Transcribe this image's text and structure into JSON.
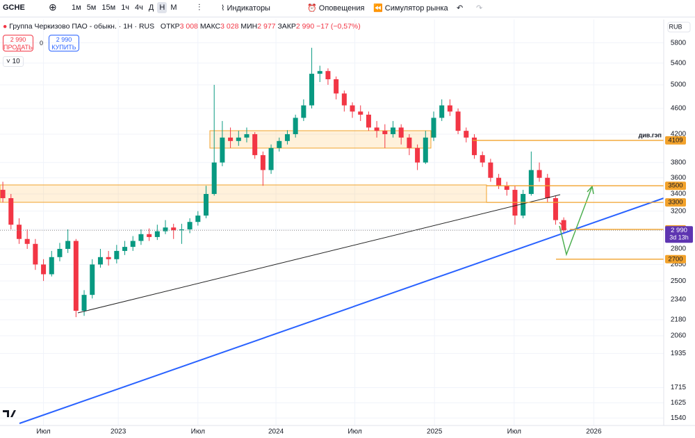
{
  "toolbar": {
    "symbol": "GCHE",
    "intervals": [
      "1м",
      "5м",
      "15м",
      "1ч",
      "4ч",
      "Д",
      "Н",
      "М"
    ],
    "indicators": "Индикаторы",
    "alerts": "Оповещения",
    "replay": "Симулятор рынка"
  },
  "legend": {
    "name": "Группа Черкизово ПАО - обыкн. · 1Н · RUS",
    "open_label": "ОТКР",
    "open": "3 008",
    "high_label": "МАКС",
    "high": "3 028",
    "low_label": "МИН",
    "low": "2 977",
    "close_label": "ЗАКР",
    "close": "2 990",
    "change": "−17 (−0,57%)"
  },
  "trade": {
    "sell_price": "2 990",
    "sell": "ПРОДАТЬ",
    "spread": "0",
    "buy_price": "2 990",
    "buy": "КУПИТЬ"
  },
  "volume_indicator": "10",
  "currency": "RUB",
  "chart_data": {
    "type": "candlestick",
    "log_scale": true,
    "grid": true,
    "categories": [
      null,
      null,
      null,
      null,
      null,
      null,
      null,
      null,
      null,
      null,
      null,
      null,
      null,
      null,
      null,
      null,
      null,
      null,
      null,
      null,
      null,
      null,
      null,
      null,
      null,
      null,
      null,
      null,
      null,
      null,
      null,
      null,
      null,
      null,
      null,
      null,
      null,
      null,
      null,
      null,
      null,
      null,
      null,
      null,
      null,
      null,
      null,
      null,
      null,
      null,
      null,
      null,
      null,
      null,
      null,
      null,
      null,
      null,
      null,
      null,
      null,
      null,
      null,
      null,
      null,
      null,
      null,
      null,
      null,
      null
    ],
    "open": [
      3450,
      3350,
      3050,
      2900,
      2850,
      2650,
      2560,
      2720,
      2800,
      2880,
      2250,
      2380,
      2650,
      2720,
      2700,
      2780,
      2820,
      2880,
      2950,
      2920,
      2980,
      3020,
      2990,
      3000,
      3080,
      3150,
      3400,
      3800,
      4150,
      4100,
      4150,
      4200,
      3900,
      3700,
      4000,
      4100,
      4200,
      4450,
      4650,
      5200,
      5250,
      5100,
      4850,
      4650,
      4550,
      4500,
      4300,
      4250,
      4200,
      4300,
      4150,
      4000,
      3800,
      4150,
      4450,
      4650,
      4550,
      4250,
      4150,
      3900,
      3800,
      3600,
      3500,
      3450,
      3150,
      3400,
      3700,
      3600,
      3350,
      3100
    ],
    "high": [
      3550,
      3400,
      3120,
      3000,
      2900,
      2700,
      2780,
      2860,
      3000,
      2900,
      2420,
      2700,
      2800,
      2780,
      2840,
      2880,
      2930,
      3000,
      3010,
      3050,
      3100,
      3060,
      3060,
      3120,
      3200,
      3500,
      5000,
      4400,
      4300,
      4250,
      4300,
      4230,
      3950,
      4050,
      4150,
      4260,
      4500,
      4750,
      5700,
      5350,
      5300,
      5150,
      4900,
      4700,
      4650,
      4550,
      4400,
      4350,
      4400,
      4350,
      4200,
      4050,
      4250,
      4550,
      4750,
      4750,
      4600,
      4300,
      4200,
      3950,
      3850,
      3650,
      3550,
      3500,
      3450,
      3950,
      3800,
      3650,
      3380,
      3130
    ],
    "low": [
      3300,
      3000,
      2850,
      2800,
      2600,
      2500,
      2540,
      2680,
      2760,
      2200,
      2210,
      2350,
      2620,
      2640,
      2660,
      2740,
      2780,
      2840,
      2880,
      2890,
      2950,
      2900,
      2850,
      2960,
      3040,
      3120,
      3380,
      3750,
      4000,
      4030,
      4080,
      3850,
      3500,
      3650,
      3950,
      4050,
      4150,
      4400,
      4600,
      5050,
      5000,
      4750,
      4550,
      4450,
      4400,
      4250,
      4150,
      4000,
      4150,
      4050,
      3900,
      3700,
      3780,
      4100,
      4400,
      4480,
      4200,
      4080,
      3850,
      3740,
      3550,
      3460,
      3380,
      3050,
      3120,
      3380,
      3550,
      3300,
      3050,
      2960
    ],
    "close": [
      3350,
      3050,
      2900,
      2850,
      2650,
      2560,
      2720,
      2800,
      2880,
      2250,
      2380,
      2650,
      2720,
      2700,
      2780,
      2820,
      2880,
      2950,
      2920,
      2980,
      3020,
      2990,
      3000,
      3080,
      3150,
      3400,
      3800,
      4150,
      4100,
      4150,
      4200,
      3900,
      3700,
      4000,
      4100,
      4200,
      4450,
      4650,
      5200,
      5250,
      5100,
      4850,
      4650,
      4550,
      4500,
      4300,
      4250,
      4200,
      4300,
      4150,
      4000,
      3800,
      4150,
      4450,
      4650,
      4550,
      4250,
      4150,
      3900,
      3800,
      3600,
      3500,
      3450,
      3150,
      3400,
      3700,
      3600,
      3350,
      3100,
      2990
    ],
    "up_color": "#089981",
    "down_color": "#f23645",
    "xlim": [
      -0.35,
      81.3
    ],
    "xticks": [
      {
        "value": 5,
        "label": "Июл"
      },
      {
        "value": 14.2,
        "label": "2023"
      },
      {
        "value": 24,
        "label": "Июл"
      },
      {
        "value": 33.6,
        "label": "2024"
      },
      {
        "value": 43.3,
        "label": "Июл"
      },
      {
        "value": 53.1,
        "label": "2025"
      },
      {
        "value": 62.9,
        "label": "Июл"
      },
      {
        "value": 72.7,
        "label": "2026"
      }
    ],
    "ylim": [
      1500,
      6300
    ],
    "yticks": [
      5800,
      5400,
      5000,
      4600,
      4200,
      3800,
      3600,
      3400,
      3200,
      3000,
      2800,
      2650,
      2500,
      2340,
      2180,
      2060,
      1935,
      1715,
      1625,
      1540
    ],
    "levels": [
      4109,
      3500,
      3300,
      3000,
      2700
    ],
    "level_color": "#f2a22b",
    "level_note": "див.гэп",
    "last_price": {
      "value": 2990,
      "label": "2 990"
    },
    "last_price_color": "#5e35b1",
    "countdown": "3d 13h"
  }
}
